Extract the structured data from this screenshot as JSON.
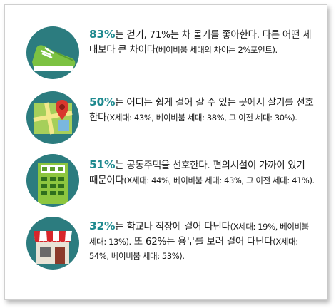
{
  "items": [
    {
      "icon": "sneaker-icon",
      "percent": "83%",
      "main": "는 걷기, 71%는 차 몰기를 좋아한다. 다른 어떤 세대보다 큰 차이다",
      "note": "(베이비붐 세대의 차이는 2%포인트)."
    },
    {
      "icon": "map-pin-icon",
      "percent": "50%",
      "main": "는 어디든 쉽게 걸어 갈 수 있는 곳에서 살기를 선호한다",
      "note": "(X세대: 43%, 베이비붐 세대: 38%, 그 이전 세대: 30%)."
    },
    {
      "icon": "apartment-building-icon",
      "percent": "51%",
      "main": "는 공동주택을 선호한다. 편의시설이 가까이 있기 때문이다",
      "note": "(X세대: 44%, 베이비붐 세대: 43%, 그 이전 세대: 41%)."
    },
    {
      "icon": "storefront-icon",
      "percent": "32%",
      "main": "는 학교나 직장에 걸어 다닌다",
      "note": "(X세대: 19%, 베이비붐 세대: 13%).",
      "main2": " 또 62%는 용무를 보러 걸어 다닌다",
      "note2": "(X세대: 54%, 베이비붐 세대: 53%)."
    }
  ],
  "colors": {
    "accent": "#1f8a8f",
    "icon_bg": "#2c7c7f"
  }
}
